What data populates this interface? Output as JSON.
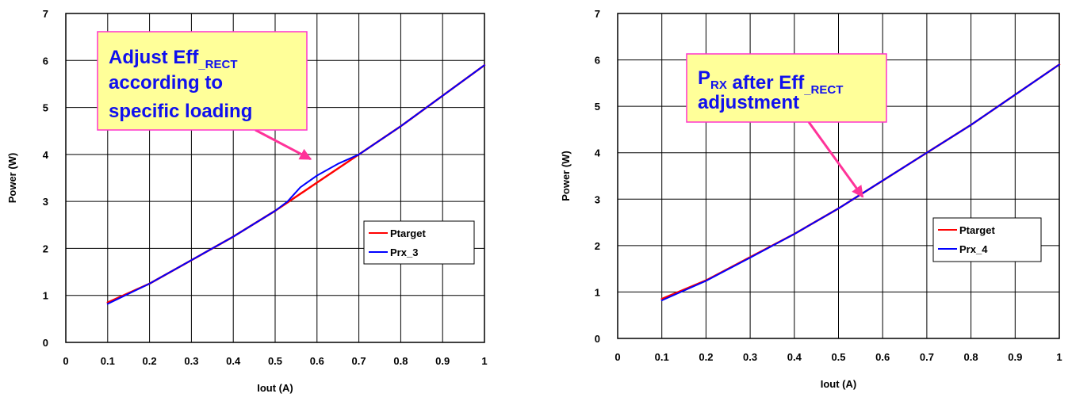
{
  "chart_data": [
    {
      "type": "line",
      "title": "",
      "xlabel": "Iout (A)",
      "ylabel": "Power (W)",
      "xlim": [
        0,
        1
      ],
      "ylim": [
        0,
        7
      ],
      "x_ticks": [
        "0",
        "0.1",
        "0.2",
        "0.3",
        "0.4",
        "0.5",
        "0.6",
        "0.7",
        "0.8",
        "0.9",
        "1"
      ],
      "y_ticks": [
        "0",
        "1",
        "2",
        "3",
        "4",
        "5",
        "6",
        "7"
      ],
      "grid": true,
      "legend_position": "right",
      "series": [
        {
          "name": "Ptarget",
          "color": "#ff0000",
          "x": [
            0.1,
            0.2,
            0.3,
            0.4,
            0.5,
            0.6,
            0.7,
            0.8,
            0.9,
            1.0
          ],
          "y": [
            0.85,
            1.25,
            1.75,
            2.25,
            2.8,
            3.4,
            4.0,
            4.6,
            5.25,
            5.9
          ]
        },
        {
          "name": "Prx_3",
          "color": "#0000ff",
          "x": [
            0.1,
            0.2,
            0.3,
            0.35,
            0.4,
            0.5,
            0.53,
            0.56,
            0.6,
            0.65,
            0.7,
            0.8,
            0.9,
            1.0
          ],
          "y": [
            0.82,
            1.25,
            1.75,
            2.0,
            2.25,
            2.8,
            3.0,
            3.3,
            3.55,
            3.8,
            4.0,
            4.6,
            5.25,
            5.9
          ]
        }
      ],
      "annotation": {
        "lines": [
          [
            {
              "text": "Adjust Eff",
              "sub": false
            },
            {
              "text": "_RECT",
              "sub": true
            }
          ],
          [
            {
              "text": "according to",
              "sub": false
            }
          ],
          [
            {
              "text": "specific loading",
              "sub": false
            }
          ]
        ],
        "arrow_target": [
          0.585,
          3.9
        ]
      }
    },
    {
      "type": "line",
      "title": "",
      "xlabel": "Iout (A)",
      "ylabel": "Power (W)",
      "xlim": [
        0,
        1
      ],
      "ylim": [
        0,
        7
      ],
      "x_ticks": [
        "0",
        "0.1",
        "0.2",
        "0.3",
        "0.4",
        "0.5",
        "0.6",
        "0.7",
        "0.8",
        "0.9",
        "1"
      ],
      "y_ticks": [
        "0",
        "1",
        "2",
        "3",
        "4",
        "5",
        "6",
        "7"
      ],
      "grid": true,
      "legend_position": "right",
      "series": [
        {
          "name": "Ptarget",
          "color": "#ff0000",
          "x": [
            0.1,
            0.2,
            0.3,
            0.4,
            0.5,
            0.6,
            0.7,
            0.8,
            0.9,
            1.0
          ],
          "y": [
            0.85,
            1.25,
            1.75,
            2.25,
            2.8,
            3.4,
            4.0,
            4.6,
            5.25,
            5.9
          ]
        },
        {
          "name": "Prx_4",
          "color": "#0000ff",
          "x": [
            0.1,
            0.2,
            0.3,
            0.4,
            0.5,
            0.6,
            0.7,
            0.8,
            0.9,
            1.0
          ],
          "y": [
            0.82,
            1.24,
            1.74,
            2.25,
            2.8,
            3.4,
            4.0,
            4.6,
            5.25,
            5.9
          ]
        }
      ],
      "annotation": {
        "lines": [
          [
            {
              "text": "P",
              "sub": false
            },
            {
              "text": "RX",
              "sub": true
            },
            {
              "text": " after Eff",
              "sub": false
            },
            {
              "text": "_RECT",
              "sub": true
            }
          ],
          [
            {
              "text": "adjustment",
              "sub": false
            }
          ]
        ],
        "arrow_target": [
          0.555,
          3.05
        ]
      }
    }
  ]
}
